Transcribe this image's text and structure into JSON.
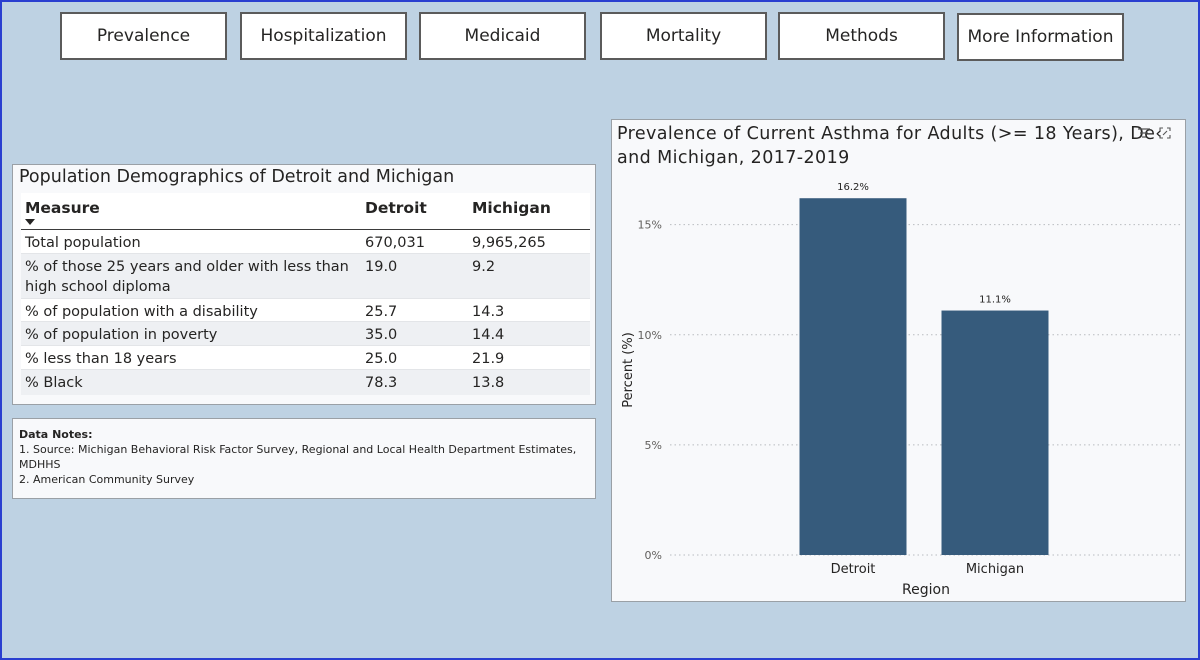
{
  "nav": {
    "tabs": [
      {
        "label": "Prevalence"
      },
      {
        "label": "Hospitalization"
      },
      {
        "label": "Medicaid"
      },
      {
        "label": "Mortality"
      },
      {
        "label": "Methods"
      },
      {
        "label": "More Information"
      }
    ]
  },
  "demographics": {
    "title": "Population Demographics of Detroit and Michigan",
    "columns": [
      "Measure",
      "Detroit",
      "Michigan"
    ],
    "rows": [
      {
        "measure": "Total population",
        "detroit": "670,031",
        "michigan": "9,965,265"
      },
      {
        "measure": "% of those 25 years and older with less than high school diploma",
        "detroit": "19.0",
        "michigan": "9.2"
      },
      {
        "measure": "% of population with a disability",
        "detroit": "25.7",
        "michigan": "14.3"
      },
      {
        "measure": "% of population in poverty",
        "detroit": "35.0",
        "michigan": "14.4"
      },
      {
        "measure": "% less than 18 years",
        "detroit": "25.0",
        "michigan": "21.9"
      },
      {
        "measure": "% Black",
        "detroit": "78.3",
        "michigan": "13.8"
      }
    ]
  },
  "notes": {
    "title": "Data Notes:",
    "lines": [
      "1. Source: Michigan Behavioral Risk Factor Survey, Regional and Local Health Department Estimates, MDHHS",
      "2. American Community Survey"
    ]
  },
  "chart_header": {
    "title": "Prevalence of Current Asthma for Adults (>= 18 Years), De‹c",
    "title_line2": "and Michigan, 2017-2019"
  },
  "chart_data": {
    "type": "bar",
    "title": "Prevalence of Current Asthma for Adults (>= 18 Years), Detroit and Michigan, 2017-2019",
    "categories": [
      "Detroit",
      "Michigan"
    ],
    "values": [
      16.2,
      11.1
    ],
    "data_labels": [
      "16.2%",
      "11.1%"
    ],
    "xlabel": "Region",
    "ylabel": "Percent (%)",
    "ylim": [
      0,
      16.8
    ],
    "yticks": [
      0,
      5,
      10,
      15
    ],
    "ytick_labels": [
      "0%",
      "5%",
      "10%",
      "15%"
    ],
    "grid": true,
    "bar_color": "#365b7c"
  },
  "colors": {
    "background": "#bed2e3",
    "frame": "#2a3fd0",
    "bar": "#365b7c"
  }
}
